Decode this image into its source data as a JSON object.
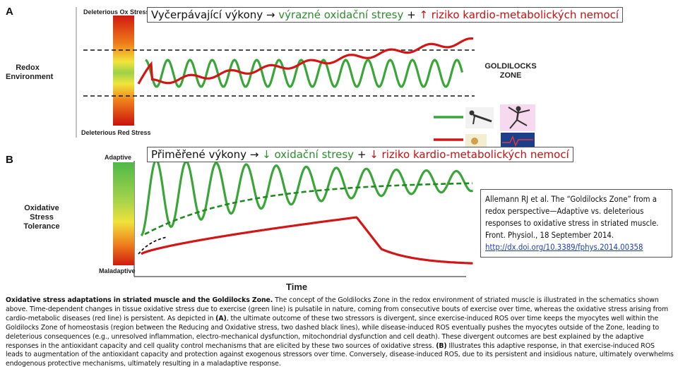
{
  "panel_a": {
    "letter": "A",
    "y_label": "Redox Environment",
    "top_label": "Deleterious Ox Stress",
    "bottom_label": "Deleterious Red Stress",
    "zone_label_line1": "GOLDILOCKS",
    "zone_label_line2": "ZONE",
    "overlay": {
      "part1": "Vyčerpávající výkony → ",
      "part2": "výrazné oxidační stresy",
      "part3": " + ",
      "part4": "↑ riziko kardio-metabolických nemocí"
    }
  },
  "panel_b": {
    "letter": "B",
    "y_label": "Oxidative Stress Tolerance",
    "top_label": "Adaptive",
    "bottom_label": "Maladaptive",
    "x_label": "Time",
    "overlay": {
      "part1": "Přiměřené výkony → ",
      "part2": "↓ oxidační stresy",
      "part3": " + ",
      "part4": "↓ riziko kardio-metabolických nemocí"
    }
  },
  "citation": {
    "text": "Allemann RJ et al. The “Goldilocks Zone” from a redox perspective—Adaptive vs. deleterious responses to oxidative stress in striated muscle. Front. Physiol., 18 September 2014.",
    "link": "http://dx.doi.org/10.3389/fphys.2014.00358"
  },
  "caption": {
    "title": "Oxidative stress adaptations in striated muscle and the Goldilocks Zone.",
    "text1": " The concept of the Goldilocks Zone in the redox environment of striated muscle is illustrated in the schematics shown above. Time-dependent changes in tissue oxidative stress due to exercise (green line) is pulsatile in nature, coming from consecutive bouts of exercise over time, whereas the oxidative stress arising from cardio-metabolic diseases (red line) is persistent. As depicted in ",
    "ref_a": "(A)",
    "text2": ", the ultimate outcome of these two stressors is divergent, since exercise-induced ROS over time keeps the myocytes well within the Goldilocks Zone of homeostasis (region between the Reducing and Oxidative stress, two dashed black lines), while disease-induced ROS eventually pushes the myocytes outside of the Zone, leading to deleterious consequences (e.g., unresolved inflammation, electro-mechanical dysfunction, mitochondrial dysfunction and cell death). These divergent outcomes are best explained by the adaptive responses in the antioxidant capacity and cell quality control mechanisms that are elicited by these two sources of oxidative stress. ",
    "ref_b": "(B)",
    "text3": " Illustrates this adaptive response, in that exercise-induced ROS leads to augmentation of the antioxidant capacity and protection against exogenous stressors over time. Conversely, disease-induced ROS, due to its persistent and insidious nature, ultimately overwhelms endogenous protective mechanisms, ultimately resulting in a maladaptive response."
  },
  "colors": {
    "green_line": "#3aa63a",
    "red_line": "#d41515",
    "dashed_line": "#111111"
  }
}
